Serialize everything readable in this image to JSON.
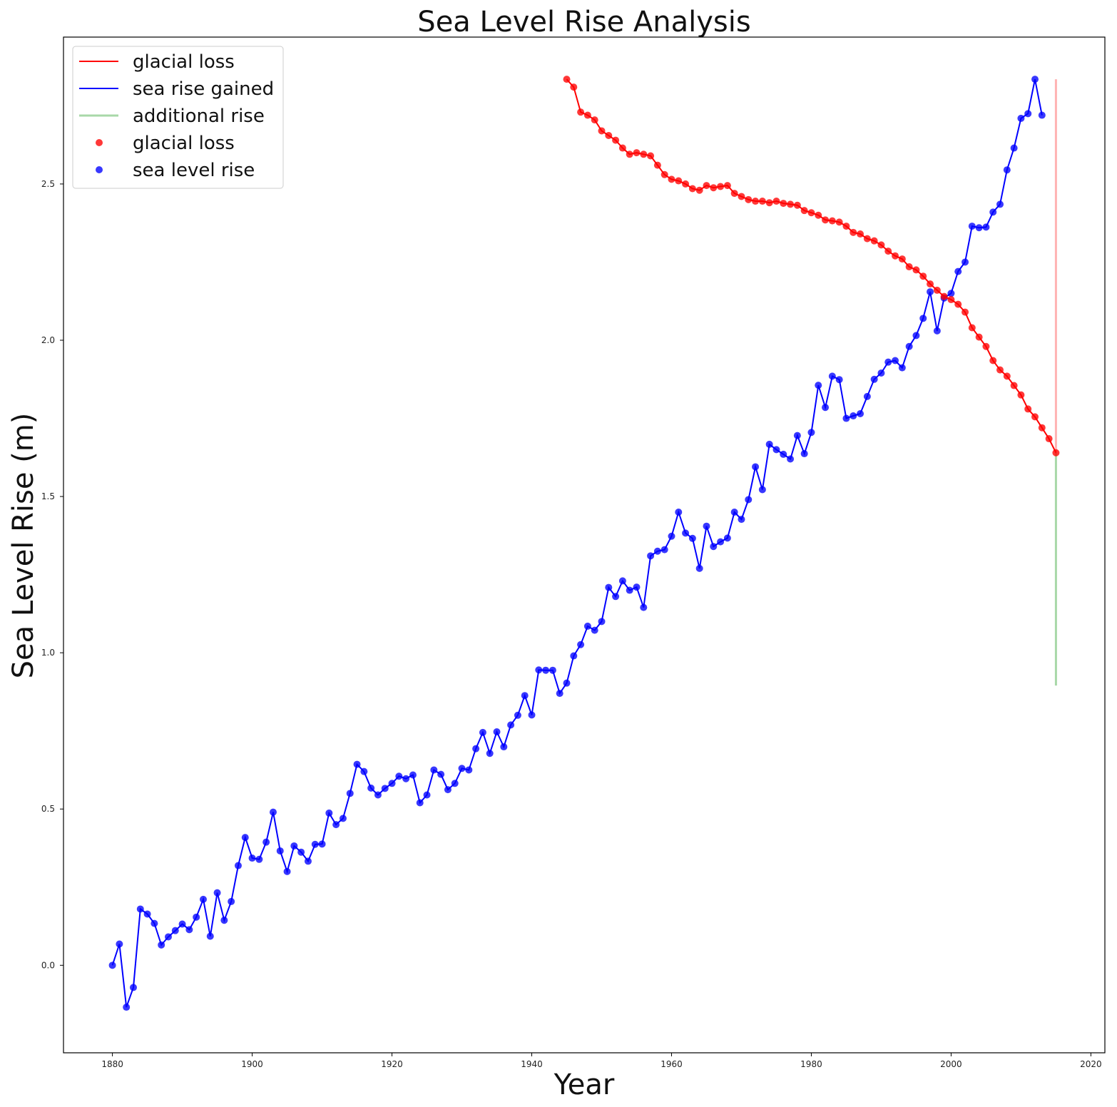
{
  "chart_data": {
    "type": "line",
    "title": "Sea Level Rise Analysis",
    "xlabel": "Year",
    "ylabel": "Sea Level Rise (m)",
    "xlim": [
      1873,
      2022
    ],
    "ylim": [
      -0.28,
      2.97
    ],
    "xticks": [
      1880,
      1900,
      1920,
      1940,
      1960,
      1980,
      2000,
      2020
    ],
    "yticks": [
      0.0,
      0.5,
      1.0,
      1.5,
      2.0,
      2.5
    ],
    "grid": false,
    "legend_position": "upper left",
    "legend": [
      {
        "label": "glacial loss",
        "kind": "line",
        "color": "#ff0000"
      },
      {
        "label": "sea rise gained",
        "kind": "line",
        "color": "#0000ff"
      },
      {
        "label": "additional rise",
        "kind": "line",
        "color": "#a8d8a8"
      },
      {
        "label": "glacial loss",
        "kind": "marker",
        "color": "#ff0000"
      },
      {
        "label": "sea level rise",
        "kind": "marker",
        "color": "#0000ff"
      }
    ],
    "series": [
      {
        "name": "sea level rise",
        "color": "#0000ff",
        "x": [
          1880,
          1881,
          1882,
          1883,
          1884,
          1885,
          1886,
          1887,
          1888,
          1889,
          1890,
          1891,
          1892,
          1893,
          1894,
          1895,
          1896,
          1897,
          1898,
          1899,
          1900,
          1901,
          1902,
          1903,
          1904,
          1905,
          1906,
          1907,
          1908,
          1909,
          1910,
          1911,
          1912,
          1913,
          1914,
          1915,
          1916,
          1917,
          1918,
          1919,
          1920,
          1921,
          1922,
          1923,
          1924,
          1925,
          1926,
          1927,
          1928,
          1929,
          1930,
          1931,
          1932,
          1933,
          1934,
          1935,
          1936,
          1937,
          1938,
          1939,
          1940,
          1941,
          1942,
          1943,
          1944,
          1945,
          1946,
          1947,
          1948,
          1949,
          1950,
          1951,
          1952,
          1953,
          1954,
          1955,
          1956,
          1957,
          1958,
          1959,
          1960,
          1961,
          1962,
          1963,
          1964,
          1965,
          1966,
          1967,
          1968,
          1969,
          1970,
          1971,
          1972,
          1973,
          1974,
          1975,
          1976,
          1977,
          1978,
          1979,
          1980,
          1981,
          1982,
          1983,
          1984,
          1985,
          1986,
          1987,
          1988,
          1989,
          1990,
          1991,
          1992,
          1993,
          1994,
          1995,
          1996,
          1997,
          1998,
          1999,
          2000,
          2001,
          2002,
          2003,
          2004,
          2005,
          2006,
          2007,
          2008,
          2009,
          2010,
          2011,
          2012,
          2013
        ],
        "values": [
          0.0,
          0.068,
          -0.134,
          -0.071,
          0.18,
          0.164,
          0.134,
          0.065,
          0.091,
          0.111,
          0.132,
          0.114,
          0.154,
          0.211,
          0.093,
          0.232,
          0.144,
          0.204,
          0.319,
          0.409,
          0.343,
          0.339,
          0.394,
          0.49,
          0.366,
          0.3,
          0.382,
          0.362,
          0.333,
          0.387,
          0.388,
          0.487,
          0.45,
          0.47,
          0.55,
          0.643,
          0.62,
          0.567,
          0.545,
          0.566,
          0.582,
          0.605,
          0.597,
          0.609,
          0.52,
          0.545,
          0.625,
          0.611,
          0.562,
          0.582,
          0.63,
          0.625,
          0.693,
          0.745,
          0.678,
          0.747,
          0.699,
          0.769,
          0.8,
          0.863,
          0.801,
          0.945,
          0.944,
          0.944,
          0.87,
          0.903,
          0.99,
          1.026,
          1.085,
          1.072,
          1.1,
          1.209,
          1.18,
          1.23,
          1.2,
          1.21,
          1.145,
          1.31,
          1.325,
          1.33,
          1.373,
          1.45,
          1.383,
          1.366,
          1.27,
          1.405,
          1.34,
          1.355,
          1.367,
          1.45,
          1.427,
          1.49,
          1.595,
          1.522,
          1.667,
          1.65,
          1.635,
          1.62,
          1.695,
          1.637,
          1.705,
          1.856,
          1.785,
          1.885,
          1.874,
          1.75,
          1.758,
          1.765,
          1.82,
          1.875,
          1.895,
          1.93,
          1.935,
          1.912,
          1.98,
          2.015,
          2.07,
          2.155,
          2.03,
          2.135,
          2.15,
          2.22,
          2.25,
          2.365,
          2.36,
          2.362,
          2.41,
          2.435,
          2.545,
          2.615,
          2.71,
          2.725,
          2.835,
          2.72
        ]
      },
      {
        "name": "glacial loss",
        "color": "#ff0000",
        "x": [
          1945,
          1946,
          1947,
          1948,
          1949,
          1950,
          1951,
          1952,
          1953,
          1954,
          1955,
          1956,
          1957,
          1958,
          1959,
          1960,
          1961,
          1962,
          1963,
          1964,
          1965,
          1966,
          1967,
          1968,
          1969,
          1970,
          1971,
          1972,
          1973,
          1974,
          1975,
          1976,
          1977,
          1978,
          1979,
          1980,
          1981,
          1982,
          1983,
          1984,
          1985,
          1986,
          1987,
          1988,
          1989,
          1990,
          1991,
          1992,
          1993,
          1994,
          1995,
          1996,
          1997,
          1998,
          1999,
          2000,
          2001,
          2002,
          2003,
          2004,
          2005,
          2006,
          2007,
          2008,
          2009,
          2010,
          2011,
          2012,
          2013,
          2014,
          2015
        ],
        "values": [
          2.835,
          2.81,
          2.73,
          2.72,
          2.705,
          2.67,
          2.655,
          2.64,
          2.615,
          2.595,
          2.6,
          2.595,
          2.59,
          2.56,
          2.53,
          2.515,
          2.51,
          2.5,
          2.485,
          2.48,
          2.495,
          2.488,
          2.492,
          2.495,
          2.47,
          2.46,
          2.45,
          2.445,
          2.445,
          2.44,
          2.445,
          2.438,
          2.435,
          2.432,
          2.415,
          2.408,
          2.4,
          2.385,
          2.382,
          2.378,
          2.365,
          2.345,
          2.34,
          2.325,
          2.318,
          2.305,
          2.285,
          2.27,
          2.26,
          2.235,
          2.225,
          2.205,
          2.18,
          2.16,
          2.14,
          2.13,
          2.115,
          2.09,
          2.04,
          2.01,
          1.98,
          1.935,
          1.905,
          1.885,
          1.855,
          1.825,
          1.78,
          1.755,
          1.72,
          1.685,
          1.64
        ]
      }
    ],
    "vlines": [
      {
        "name": "glacial loss",
        "x": 2015,
        "from": 1.64,
        "to": 2.835,
        "color": "#ffb3b3"
      },
      {
        "name": "additional rise",
        "x": 2015,
        "from": 0.895,
        "to": 1.64,
        "color": "#a8d8a8"
      }
    ]
  }
}
